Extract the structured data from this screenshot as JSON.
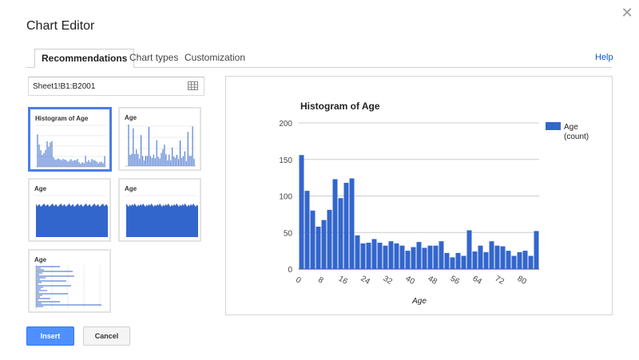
{
  "dialog": {
    "title": "Chart Editor",
    "close_icon": "close-icon"
  },
  "tabs": [
    {
      "label": "Recommendations",
      "active": true
    },
    {
      "label": "Chart types",
      "active": false
    },
    {
      "label": "Customization",
      "active": false
    }
  ],
  "help_label": "Help",
  "range": {
    "value": "Sheet1!B1:B2001",
    "icon": "grid-select-icon"
  },
  "thumbnails": [
    {
      "label": "Histogram of Age",
      "kind": "histogram",
      "selected": true
    },
    {
      "label": "Age",
      "kind": "column",
      "selected": false
    },
    {
      "label": "Age",
      "kind": "area",
      "selected": false
    },
    {
      "label": "Age",
      "kind": "stepped-area",
      "selected": false
    },
    {
      "label": "Age",
      "kind": "bar",
      "selected": false
    }
  ],
  "colors": {
    "series": "#3366cc",
    "accent": "#4d90fe",
    "link": "#1155cc"
  },
  "buttons": {
    "insert": "Insert",
    "cancel": "Cancel"
  },
  "chart_data": {
    "type": "bar",
    "title": "Histogram of Age",
    "xlabel": "Age",
    "ylabel": "",
    "ylim": [
      0,
      200
    ],
    "yticks": [
      0,
      50,
      100,
      150,
      200
    ],
    "xlim": [
      0,
      86
    ],
    "xticks": [
      0,
      8,
      16,
      24,
      32,
      40,
      48,
      56,
      64,
      72,
      80
    ],
    "bin_width": 2,
    "bin_starts": [
      0,
      2,
      4,
      6,
      8,
      10,
      12,
      14,
      16,
      18,
      20,
      22,
      24,
      26,
      28,
      30,
      32,
      34,
      36,
      38,
      40,
      42,
      44,
      46,
      48,
      50,
      52,
      54,
      56,
      58,
      60,
      62,
      64,
      66,
      68,
      70,
      72,
      74,
      76,
      78,
      80,
      82,
      84
    ],
    "series": [
      {
        "name": "Age (count)",
        "values": [
          156,
          107,
          80,
          58,
          67,
          81,
          123,
          97,
          118,
          124,
          46,
          35,
          36,
          41,
          36,
          32,
          38,
          35,
          32,
          25,
          30,
          37,
          29,
          32,
          32,
          38,
          22,
          16,
          22,
          18,
          53,
          24,
          32,
          23,
          38,
          32,
          31,
          25,
          18,
          23,
          25,
          18,
          52
        ]
      }
    ],
    "legend": {
      "position": "right",
      "entries": [
        "Age",
        "(count)"
      ]
    },
    "grid": true
  }
}
